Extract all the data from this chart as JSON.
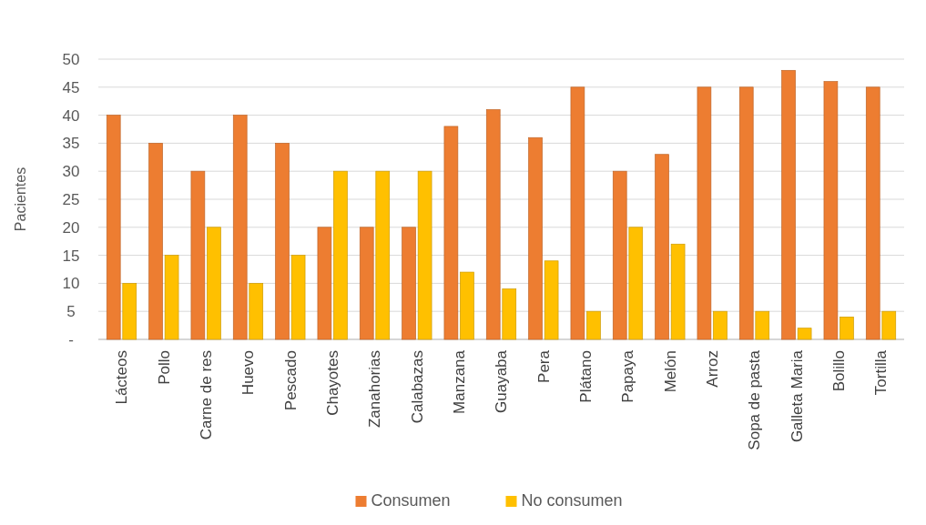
{
  "chart_data": {
    "type": "bar",
    "ylabel": "Pacientes",
    "categories": [
      "Lácteos",
      "Pollo",
      "Carne de res",
      "Huevo",
      "Pescado",
      "Chayotes",
      "Zanahorias",
      "Calabazas",
      "Manzana",
      "Guayaba",
      "Pera",
      "Plátano",
      "Papaya",
      "Melón",
      "Arroz",
      "Sopa de pasta",
      "Galleta Maria",
      "Bolillo",
      "Tortilla"
    ],
    "series": [
      {
        "name": "Consumen",
        "color": "#ed7d31",
        "values": [
          40,
          35,
          30,
          40,
          35,
          20,
          20,
          20,
          38,
          41,
          36,
          45,
          30,
          33,
          45,
          45,
          48,
          46,
          45
        ]
      },
      {
        "name": "No consumen",
        "color": "#ffc000",
        "values": [
          10,
          15,
          20,
          10,
          15,
          30,
          30,
          30,
          12,
          9,
          14,
          5,
          20,
          17,
          5,
          5,
          2,
          4,
          5
        ]
      }
    ],
    "ylim": [
      0,
      50
    ],
    "yticks": [
      {
        "value": 0,
        "label": "-"
      },
      5,
      10,
      15,
      20,
      25,
      30,
      35,
      40,
      45,
      50
    ],
    "grid": "y",
    "legend": "bottom"
  }
}
